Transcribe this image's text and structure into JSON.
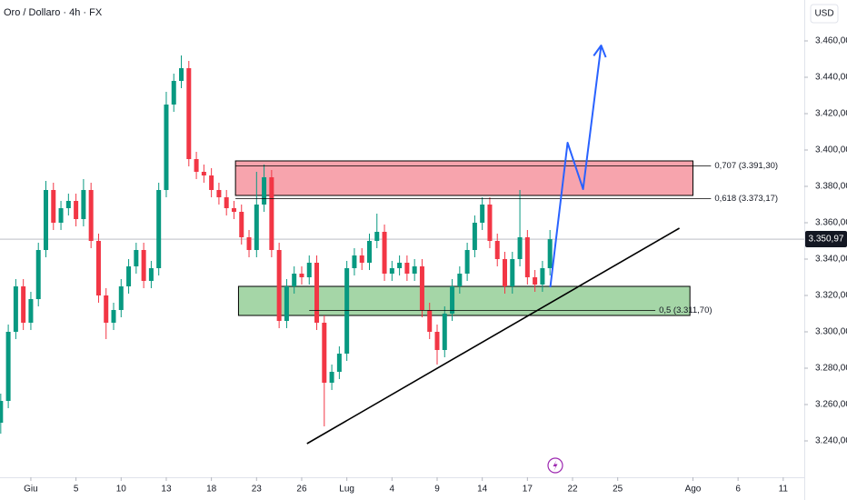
{
  "chart_data": {
    "type": "candlestick",
    "title": "Oro / Dollaro · 4h · FX",
    "currency": "USD",
    "up_color": "#089981",
    "down_color": "#f23645",
    "x": [
      -2,
      -1.5,
      -1,
      -0.5,
      0,
      0.5,
      1,
      1.5,
      2,
      2.5,
      3,
      3.5,
      4,
      4.5,
      5,
      5.5,
      6,
      6.5,
      7,
      7.5,
      8,
      8.5,
      9,
      9.5,
      10,
      10.5,
      11,
      11.5,
      12,
      12.5,
      13,
      13.5,
      14,
      14.5,
      15,
      15.5,
      16,
      16.5,
      17,
      17.5,
      18,
      18.5,
      19,
      19.5,
      20,
      20.5,
      21,
      21.5,
      22,
      22.5,
      23,
      23.5,
      24,
      24.5,
      25,
      25.5,
      26,
      26.5,
      27,
      27.5,
      28,
      28.5,
      29,
      29.5,
      30,
      30.5,
      31,
      31.5,
      32,
      32.5,
      33,
      33.5,
      34,
      34.5
    ],
    "open": [
      3250,
      3262,
      3300,
      3325,
      3305,
      3318,
      3345,
      3378,
      3360,
      3368,
      3372,
      3362,
      3378,
      3350,
      3320,
      3305,
      3312,
      3325,
      3336,
      3345,
      3328,
      3335,
      3378,
      3425,
      3438,
      3445,
      3395,
      3388,
      3386,
      3378,
      3374,
      3368,
      3366,
      3352,
      3345,
      3370,
      3385,
      3345,
      3306,
      3325,
      3332,
      3330,
      3338,
      3305,
      3272,
      3278,
      3288,
      3335,
      3342,
      3338,
      3350,
      3355,
      3332,
      3335,
      3338,
      3332,
      3336,
      3312,
      3300,
      3290,
      3310,
      3325,
      3332,
      3345,
      3360,
      3370,
      3350,
      3340,
      3325,
      3340,
      3352,
      3330,
      3326,
      3335
    ],
    "high": [
      3266,
      3304,
      3329,
      3329,
      3322,
      3349,
      3383,
      3382,
      3372,
      3376,
      3376,
      3384,
      3382,
      3354,
      3324,
      3316,
      3329,
      3340,
      3349,
      3349,
      3339,
      3382,
      3432,
      3442,
      3452,
      3449,
      3399,
      3392,
      3390,
      3382,
      3378,
      3372,
      3370,
      3356,
      3388,
      3392,
      3389,
      3349,
      3329,
      3336,
      3336,
      3342,
      3342,
      3309,
      3282,
      3292,
      3339,
      3346,
      3346,
      3354,
      3365,
      3359,
      3339,
      3342,
      3342,
      3340,
      3340,
      3316,
      3304,
      3314,
      3329,
      3336,
      3349,
      3364,
      3374,
      3374,
      3354,
      3344,
      3344,
      3378,
      3356,
      3334,
      3339,
      3356
    ],
    "low": [
      3244,
      3258,
      3296,
      3301,
      3301,
      3314,
      3341,
      3356,
      3356,
      3364,
      3358,
      3358,
      3346,
      3316,
      3296,
      3301,
      3308,
      3321,
      3332,
      3324,
      3324,
      3331,
      3374,
      3421,
      3434,
      3391,
      3384,
      3382,
      3374,
      3370,
      3364,
      3362,
      3348,
      3341,
      3341,
      3366,
      3341,
      3302,
      3302,
      3321,
      3326,
      3326,
      3301,
      3248,
      3268,
      3274,
      3284,
      3331,
      3334,
      3334,
      3346,
      3328,
      3328,
      3331,
      3328,
      3328,
      3308,
      3296,
      3282,
      3286,
      3306,
      3321,
      3328,
      3341,
      3356,
      3346,
      3336,
      3321,
      3321,
      3336,
      3326,
      3322,
      3322,
      3331
    ],
    "close": [
      3262,
      3300,
      3325,
      3305,
      3318,
      3345,
      3378,
      3360,
      3368,
      3372,
      3362,
      3378,
      3350,
      3320,
      3305,
      3312,
      3325,
      3336,
      3345,
      3328,
      3335,
      3378,
      3425,
      3438,
      3445,
      3395,
      3388,
      3386,
      3378,
      3374,
      3368,
      3366,
      3352,
      3345,
      3370,
      3385,
      3345,
      3306,
      3325,
      3332,
      3330,
      3338,
      3305,
      3272,
      3278,
      3288,
      3335,
      3342,
      3338,
      3350,
      3355,
      3332,
      3335,
      3338,
      3332,
      3336,
      3312,
      3300,
      3290,
      3310,
      3325,
      3332,
      3345,
      3360,
      3370,
      3350,
      3340,
      3325,
      3340,
      3352,
      3330,
      3326,
      3335,
      3350.97
    ],
    "xlim": [
      -2.05,
      51.4
    ],
    "ylim": [
      3220,
      3482.5
    ],
    "xticks": [
      {
        "value": 0,
        "label": "Giu"
      },
      {
        "value": 3,
        "label": "5"
      },
      {
        "value": 6,
        "label": "10"
      },
      {
        "value": 9,
        "label": "13"
      },
      {
        "value": 12,
        "label": "18"
      },
      {
        "value": 15,
        "label": "23"
      },
      {
        "value": 18,
        "label": "26"
      },
      {
        "value": 21,
        "label": "Lug"
      },
      {
        "value": 24,
        "label": "4"
      },
      {
        "value": 27,
        "label": "9"
      },
      {
        "value": 30,
        "label": "14"
      },
      {
        "value": 33,
        "label": "17"
      },
      {
        "value": 36,
        "label": "22"
      },
      {
        "value": 39,
        "label": "25"
      },
      {
        "value": 44,
        "label": "Ago"
      },
      {
        "value": 47,
        "label": "6"
      },
      {
        "value": 50,
        "label": "11"
      }
    ],
    "yticks": [
      {
        "value": 3240,
        "label": "3.240,00"
      },
      {
        "value": 3260,
        "label": "3.260,00"
      },
      {
        "value": 3280,
        "label": "3.280,00"
      },
      {
        "value": 3300,
        "label": "3.300,00"
      },
      {
        "value": 3320,
        "label": "3.320,00"
      },
      {
        "value": 3340,
        "label": "3.340,00"
      },
      {
        "value": 3360,
        "label": "3.360,00"
      },
      {
        "value": 3380,
        "label": "3.380,00"
      },
      {
        "value": 3400,
        "label": "3.400,00"
      },
      {
        "value": 3420,
        "label": "3.420,00"
      },
      {
        "value": 3440,
        "label": "3.440,00"
      },
      {
        "value": 3460,
        "label": "3.460,00"
      }
    ],
    "last_price": {
      "value": 3350.97,
      "label": "3.350,97"
    },
    "zones": [
      {
        "x": [
          13.6,
          44.0
        ],
        "y": [
          3375,
          3394
        ],
        "color": "#f7a4ad"
      },
      {
        "x": [
          13.8,
          43.8
        ],
        "y": [
          3309,
          3325
        ],
        "color": "#a5d6a7"
      }
    ],
    "levels": [
      {
        "value": 3391.3,
        "label": "0,707 (3.391,30)",
        "x": [
          13.6,
          45.2
        ]
      },
      {
        "value": 3373.17,
        "label": "0,618 (3.373,17)",
        "x": [
          13.6,
          45.2
        ]
      },
      {
        "value": 3311.7,
        "label": "0,5 (3.311,70)",
        "x": [
          18.5,
          41.5
        ]
      }
    ],
    "trendline": {
      "x": [
        18.35,
        43.1
      ],
      "y": [
        3238.5,
        3357
      ]
    },
    "projection": {
      "x": [
        34.52,
        35.67,
        36.7,
        37.9
      ],
      "y": [
        3324.5,
        3404,
        3378.5,
        3457.5
      ],
      "color": "#2962ff"
    }
  }
}
